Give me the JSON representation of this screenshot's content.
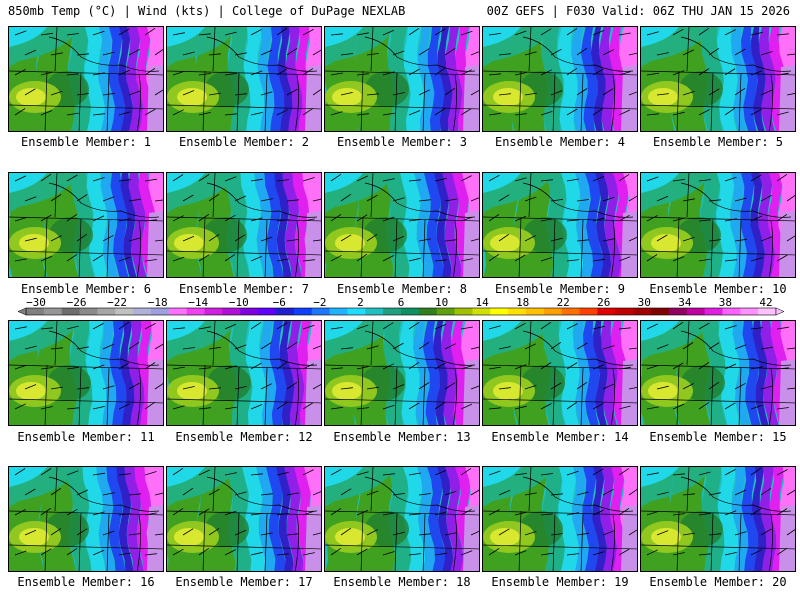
{
  "header": {
    "left": "850mb Temp (°C) | Wind (kts) | College of DuPage NEXLAB",
    "right": "00Z GEFS | F030 Valid: 06Z THU JAN 15 2026"
  },
  "panels": [
    {
      "label": "Ensemble Member: 1"
    },
    {
      "label": "Ensemble Member: 2"
    },
    {
      "label": "Ensemble Member: 3"
    },
    {
      "label": "Ensemble Member: 4"
    },
    {
      "label": "Ensemble Member: 5"
    },
    {
      "label": "Ensemble Member: 6"
    },
    {
      "label": "Ensemble Member: 7"
    },
    {
      "label": "Ensemble Member: 8"
    },
    {
      "label": "Ensemble Member: 9"
    },
    {
      "label": "Ensemble Member: 10"
    },
    {
      "label": "Ensemble Member: 11"
    },
    {
      "label": "Ensemble Member: 12"
    },
    {
      "label": "Ensemble Member: 13"
    },
    {
      "label": "Ensemble Member: 14"
    },
    {
      "label": "Ensemble Member: 15"
    },
    {
      "label": "Ensemble Member: 16"
    },
    {
      "label": "Ensemble Member: 17"
    },
    {
      "label": "Ensemble Member: 18"
    },
    {
      "label": "Ensemble Member: 19"
    },
    {
      "label": "Ensemble Member: 20"
    }
  ],
  "colorbar": {
    "labels": [
      "−30",
      "−26",
      "−22",
      "−18",
      "−14",
      "−10",
      "−6",
      "−2",
      "2",
      "6",
      "10",
      "14",
      "18",
      "22",
      "26",
      "30",
      "34",
      "38",
      "42"
    ],
    "colors": [
      "#7f7f7f",
      "#969696",
      "#6e6e6e",
      "#8a8a8a",
      "#a6a6a6",
      "#c0c0c0",
      "#b0b0d8",
      "#9f9fe0",
      "#ff70ff",
      "#f040f0",
      "#d020e0",
      "#b010d8",
      "#8000e0",
      "#6000ff",
      "#2020d0",
      "#1040ff",
      "#1e78ff",
      "#20b4ff",
      "#20dcff",
      "#20c0c0",
      "#20a080",
      "#109060",
      "#308020",
      "#60a010",
      "#a0c000",
      "#d0e000",
      "#ffff00",
      "#ffe000",
      "#ffc000",
      "#ffa000",
      "#ff7000",
      "#ff4000",
      "#e00000",
      "#c00000",
      "#a00000",
      "#800000",
      "#900060",
      "#c000a0",
      "#e020e0",
      "#ff60ff",
      "#ff90ff",
      "#ffc0ff"
    ]
  },
  "panel_palette": {
    "yellow": "#d8e830",
    "lightgreen": "#90c820",
    "green": "#40a020",
    "darkgreen": "#208030",
    "teal": "#20b088",
    "cyan": "#20d8e8",
    "skyblue": "#20a8f0",
    "blue": "#2048f0",
    "darkblue": "#3020c8",
    "purple": "#9020e8",
    "magenta": "#e020f0",
    "pink": "#ff70f8",
    "lavender": "#c890e8"
  }
}
